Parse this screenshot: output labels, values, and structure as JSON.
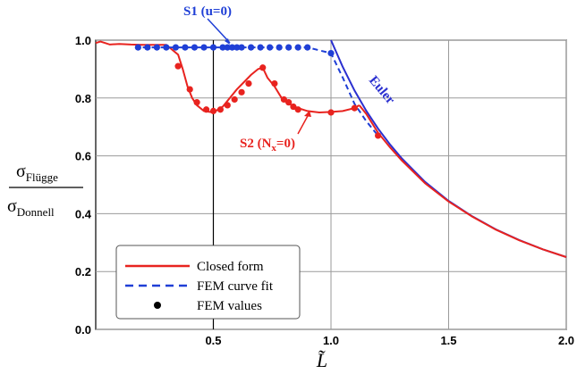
{
  "chart_data": {
    "type": "line",
    "title": "",
    "xlabel": "L̃",
    "ylabel": {
      "numerator": "σ",
      "numerator_sub": "Flügge",
      "denominator": "σ",
      "denominator_sub": "Donnell"
    },
    "xlim": [
      0.0,
      2.0
    ],
    "ylim": [
      0.0,
      1.0
    ],
    "x_ticks": [
      0.5,
      1.0,
      1.5,
      2.0
    ],
    "x_tick_labels": [
      "0.5",
      "1.0",
      "1.5",
      "2.0"
    ],
    "y_ticks": [
      0.0,
      0.2,
      0.4,
      0.6,
      0.8,
      1.0
    ],
    "y_tick_labels": [
      "0.0",
      "0.2",
      "0.4",
      "0.6",
      "0.8",
      "1.0"
    ],
    "grid": true,
    "legend_position": "bottom-left",
    "colors": {
      "closed_form": "#e8231f",
      "fem_fit": "#1f3fd6",
      "euler": "#2a2fd0",
      "fem_points": "#000000"
    },
    "legend": [
      {
        "label": "Closed form",
        "style": "solid-red"
      },
      {
        "label": "FEM curve fit",
        "style": "dashed-blue"
      },
      {
        "label": "FEM values",
        "style": "black-dot"
      }
    ],
    "annotations": [
      {
        "text": "S1 (u=0)"
      },
      {
        "text": "Euler"
      },
      {
        "text": "S2 (N",
        "sub": "x",
        "tail": "=0)"
      }
    ],
    "series": [
      {
        "name": "S2 (Nx=0) closed form",
        "color": "#e8231f",
        "x": [
          0.0,
          0.02,
          0.04,
          0.06,
          0.1,
          0.15,
          0.2,
          0.3,
          0.35,
          0.37,
          0.39,
          0.41,
          0.43,
          0.46,
          0.5,
          0.54,
          0.57,
          0.6,
          0.63,
          0.66,
          0.69,
          0.71,
          0.73,
          0.76,
          0.79,
          0.82,
          0.86,
          0.9,
          0.95,
          1.0,
          1.05,
          1.1,
          1.12
        ],
        "y": [
          0.99,
          0.995,
          0.99,
          0.985,
          0.987,
          0.985,
          0.984,
          0.984,
          0.95,
          0.9,
          0.84,
          0.8,
          0.775,
          0.755,
          0.75,
          0.77,
          0.8,
          0.83,
          0.855,
          0.88,
          0.9,
          0.905,
          0.87,
          0.84,
          0.8,
          0.78,
          0.765,
          0.755,
          0.75,
          0.752,
          0.755,
          0.765,
          0.775
        ]
      },
      {
        "name": "Euler",
        "color": "#2a2fd0",
        "x": [
          1.0,
          1.05,
          1.1,
          1.15,
          1.2,
          1.25,
          1.3,
          1.4,
          1.5,
          1.6,
          1.7,
          1.8,
          1.9,
          2.0
        ],
        "y": [
          1.0,
          0.907,
          0.826,
          0.756,
          0.694,
          0.64,
          0.592,
          0.51,
          0.444,
          0.391,
          0.346,
          0.309,
          0.277,
          0.25
        ]
      },
      {
        "name": "S2 closed form tail",
        "color": "#e8231f",
        "x": [
          1.12,
          1.15,
          1.2,
          1.25,
          1.3,
          1.4,
          1.5,
          1.6,
          1.7,
          1.8,
          1.9,
          2.0
        ],
        "y": [
          0.775,
          0.745,
          0.68,
          0.63,
          0.585,
          0.505,
          0.442,
          0.39,
          0.345,
          0.308,
          0.277,
          0.25
        ]
      },
      {
        "name": "S1 (u=0) FEM curve fit",
        "color": "#1f3fd6",
        "x": [
          0.2,
          0.3,
          0.4,
          0.5,
          0.6,
          0.7,
          0.8,
          0.9,
          1.0,
          1.05,
          1.1,
          1.15,
          1.2
        ],
        "y": [
          0.975,
          0.975,
          0.975,
          0.975,
          0.975,
          0.975,
          0.975,
          0.975,
          0.955,
          0.87,
          0.78,
          0.72,
          0.67
        ]
      }
    ],
    "points": [
      {
        "name": "S1 FEM values",
        "color": "#1f3fd6",
        "x": [
          0.18,
          0.22,
          0.26,
          0.3,
          0.34,
          0.38,
          0.42,
          0.46,
          0.5,
          0.54,
          0.56,
          0.58,
          0.6,
          0.62,
          0.66,
          0.7,
          0.74,
          0.78,
          0.82,
          0.86,
          0.9,
          1.0
        ],
        "y": [
          0.975,
          0.975,
          0.975,
          0.975,
          0.975,
          0.975,
          0.975,
          0.975,
          0.975,
          0.975,
          0.975,
          0.975,
          0.975,
          0.975,
          0.975,
          0.975,
          0.975,
          0.975,
          0.975,
          0.975,
          0.975,
          0.955
        ]
      },
      {
        "name": "S2 FEM values",
        "color": "#e8231f",
        "x": [
          0.35,
          0.4,
          0.43,
          0.47,
          0.5,
          0.53,
          0.56,
          0.59,
          0.62,
          0.65,
          0.71,
          0.76,
          0.8,
          0.82,
          0.84,
          0.86,
          1.0,
          1.1,
          1.2
        ],
        "y": [
          0.91,
          0.83,
          0.785,
          0.76,
          0.755,
          0.76,
          0.775,
          0.795,
          0.82,
          0.85,
          0.905,
          0.85,
          0.795,
          0.785,
          0.77,
          0.76,
          0.75,
          0.765,
          0.67
        ]
      }
    ]
  }
}
